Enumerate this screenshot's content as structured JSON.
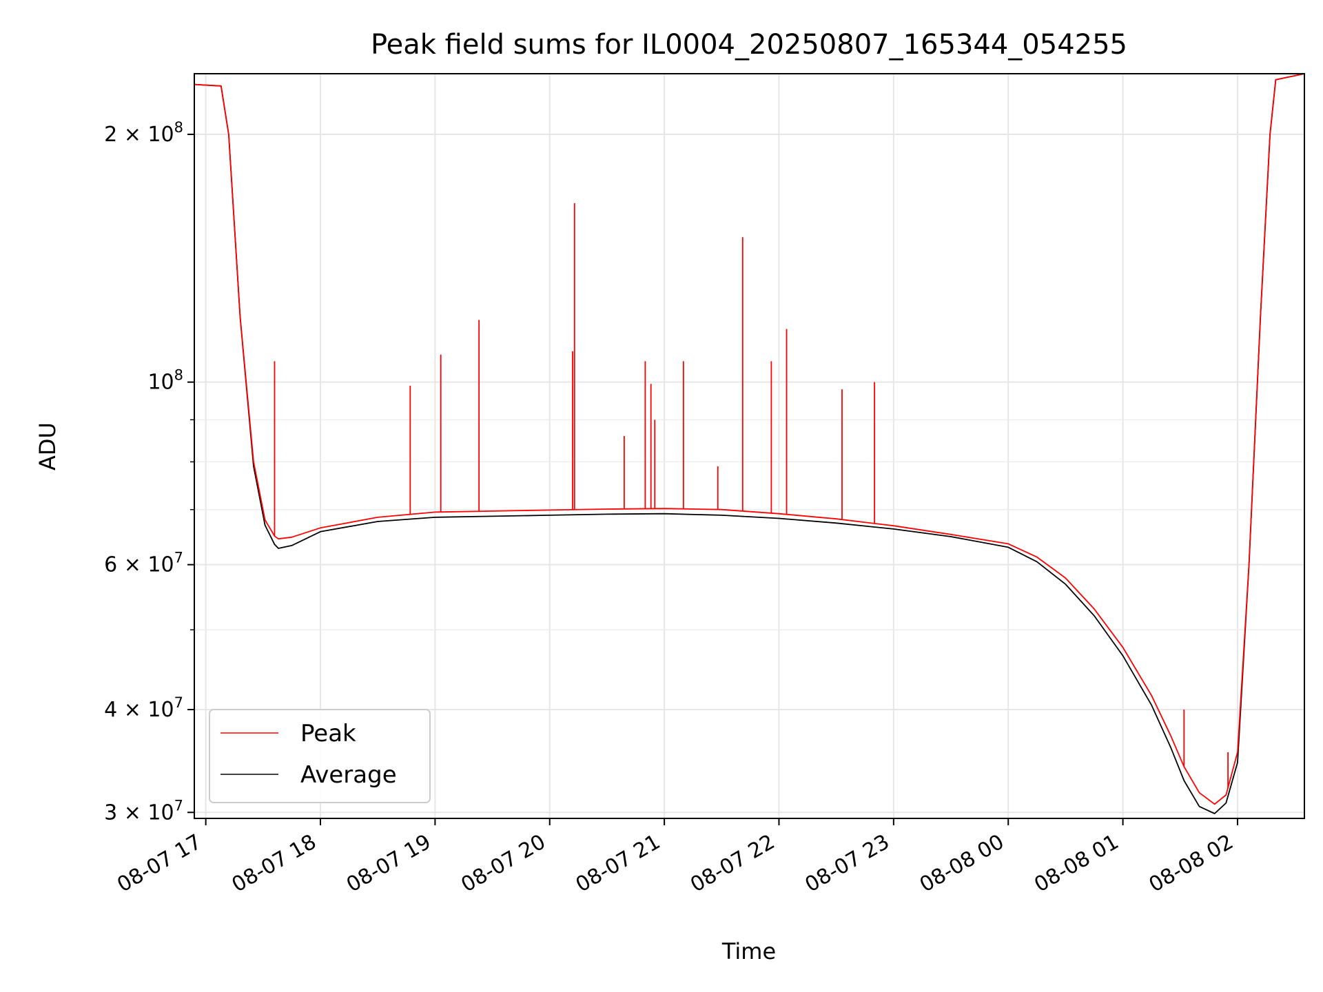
{
  "chart_data": {
    "type": "line",
    "title": "Peak field sums for IL0004_20250807_165344_054255",
    "xlabel": "Time",
    "ylabel": "ADU",
    "x_scale": "time",
    "y_scale": "log",
    "xlim": [
      "2025-08-07 16:54",
      "2025-08-08 02:35"
    ],
    "ylim": [
      29500000,
      237000000
    ],
    "grid": true,
    "legend_position": "lower-left",
    "x_ticks": [
      {
        "time": "2025-08-07 17:00",
        "label": "08-07 17"
      },
      {
        "time": "2025-08-07 18:00",
        "label": "08-07 18"
      },
      {
        "time": "2025-08-07 19:00",
        "label": "08-07 19"
      },
      {
        "time": "2025-08-07 20:00",
        "label": "08-07 20"
      },
      {
        "time": "2025-08-07 21:00",
        "label": "08-07 21"
      },
      {
        "time": "2025-08-07 22:00",
        "label": "08-07 22"
      },
      {
        "time": "2025-08-07 23:00",
        "label": "08-07 23"
      },
      {
        "time": "2025-08-08 00:00",
        "label": "08-08 00"
      },
      {
        "time": "2025-08-08 01:00",
        "label": "08-08 01"
      },
      {
        "time": "2025-08-08 02:00",
        "label": "08-08 02"
      }
    ],
    "y_ticks": [
      {
        "value": 30000000,
        "mantissa": "3",
        "base": "10",
        "exp": "7"
      },
      {
        "value": 40000000,
        "mantissa": "4",
        "base": "10",
        "exp": "7"
      },
      {
        "value": 60000000,
        "mantissa": "6",
        "base": "10",
        "exp": "7"
      },
      {
        "value": 100000000,
        "mantissa": "",
        "base": "10",
        "exp": "8"
      },
      {
        "value": 200000000,
        "mantissa": "2",
        "base": "10",
        "exp": "8"
      }
    ],
    "y_minor_ticks": [
      50000000,
      70000000,
      80000000,
      90000000
    ],
    "series": [
      {
        "name": "Peak",
        "color": "#ff0000",
        "x": [
          "2025-08-07 16:54",
          "2025-08-07 17:08",
          "2025-08-07 17:12",
          "2025-08-07 17:18",
          "2025-08-07 17:25",
          "2025-08-07 17:31",
          "2025-08-07 17:36",
          "2025-08-07 17:38",
          "2025-08-07 17:45",
          "2025-08-07 18:00",
          "2025-08-07 18:30",
          "2025-08-07 19:00",
          "2025-08-07 19:30",
          "2025-08-07 20:00",
          "2025-08-07 20:30",
          "2025-08-07 21:00",
          "2025-08-07 21:30",
          "2025-08-07 22:00",
          "2025-08-07 22:30",
          "2025-08-07 23:00",
          "2025-08-07 23:30",
          "2025-08-08 00:00",
          "2025-08-08 00:15",
          "2025-08-08 00:30",
          "2025-08-08 00:45",
          "2025-08-08 01:00",
          "2025-08-08 01:15",
          "2025-08-08 01:25",
          "2025-08-08 01:32",
          "2025-08-08 01:40",
          "2025-08-08 01:48",
          "2025-08-08 01:54",
          "2025-08-08 02:00",
          "2025-08-08 02:06",
          "2025-08-08 02:12",
          "2025-08-08 02:17",
          "2025-08-08 02:20",
          "2025-08-08 02:35"
        ],
        "y": [
          230000000,
          229000000,
          200000000,
          120000000,
          80000000,
          68000000,
          65000000,
          64500000,
          64800000,
          66500000,
          68500000,
          69500000,
          69700000,
          69900000,
          70100000,
          70200000,
          70000000,
          69200000,
          68200000,
          66900000,
          65300000,
          63600000,
          61300000,
          57800000,
          53000000,
          47600000,
          41600000,
          37200000,
          34100000,
          31700000,
          30700000,
          31500000,
          35500000,
          60000000,
          120000000,
          200000000,
          233000000,
          237000000
        ]
      },
      {
        "name": "Average",
        "color": "#000000",
        "x": [
          "2025-08-07 16:54",
          "2025-08-07 17:08",
          "2025-08-07 17:12",
          "2025-08-07 17:18",
          "2025-08-07 17:25",
          "2025-08-07 17:31",
          "2025-08-07 17:36",
          "2025-08-07 17:38",
          "2025-08-07 17:45",
          "2025-08-07 18:00",
          "2025-08-07 18:30",
          "2025-08-07 19:00",
          "2025-08-07 19:30",
          "2025-08-07 20:00",
          "2025-08-07 20:30",
          "2025-08-07 21:00",
          "2025-08-07 21:30",
          "2025-08-07 22:00",
          "2025-08-07 22:30",
          "2025-08-07 23:00",
          "2025-08-07 23:30",
          "2025-08-08 00:00",
          "2025-08-08 00:15",
          "2025-08-08 00:30",
          "2025-08-08 00:45",
          "2025-08-08 01:00",
          "2025-08-08 01:15",
          "2025-08-08 01:25",
          "2025-08-08 01:32",
          "2025-08-08 01:40",
          "2025-08-08 01:48",
          "2025-08-08 01:54",
          "2025-08-08 02:00",
          "2025-08-08 02:06",
          "2025-08-08 02:12",
          "2025-08-08 02:17",
          "2025-08-08 02:20",
          "2025-08-08 02:35"
        ],
        "y": [
          230000000,
          229000000,
          200000000,
          120000000,
          79000000,
          67000000,
          63500000,
          62800000,
          63300000,
          65800000,
          67700000,
          68500000,
          68700000,
          68900000,
          69100000,
          69200000,
          68900000,
          68300000,
          67400000,
          66300000,
          64900000,
          63000000,
          60500000,
          56800000,
          52000000,
          46500000,
          40500000,
          36000000,
          32800000,
          30500000,
          29900000,
          30800000,
          34500000,
          60000000,
          120000000,
          200000000,
          233000000,
          237000000
        ]
      }
    ],
    "peak_spikes": [
      {
        "x": "2025-08-07 17:36",
        "y": 106000000
      },
      {
        "x": "2025-08-07 18:47",
        "y": 99000000
      },
      {
        "x": "2025-08-07 19:03",
        "y": 108000000
      },
      {
        "x": "2025-08-07 19:23",
        "y": 119000000
      },
      {
        "x": "2025-08-07 20:12",
        "y": 109000000
      },
      {
        "x": "2025-08-07 20:13",
        "y": 165000000
      },
      {
        "x": "2025-08-07 20:39",
        "y": 86000000
      },
      {
        "x": "2025-08-07 20:50",
        "y": 106000000
      },
      {
        "x": "2025-08-07 20:53",
        "y": 99500000
      },
      {
        "x": "2025-08-07 20:55",
        "y": 90000000
      },
      {
        "x": "2025-08-07 21:10",
        "y": 106000000
      },
      {
        "x": "2025-08-07 21:28",
        "y": 79000000
      },
      {
        "x": "2025-08-07 21:41",
        "y": 150000000
      },
      {
        "x": "2025-08-07 21:56",
        "y": 106000000
      },
      {
        "x": "2025-08-07 22:04",
        "y": 116000000
      },
      {
        "x": "2025-08-07 22:33",
        "y": 98000000
      },
      {
        "x": "2025-08-07 22:50",
        "y": 100000000
      },
      {
        "x": "2025-08-08 01:32",
        "y": 40000000
      },
      {
        "x": "2025-08-08 01:55",
        "y": 35500000
      }
    ]
  }
}
